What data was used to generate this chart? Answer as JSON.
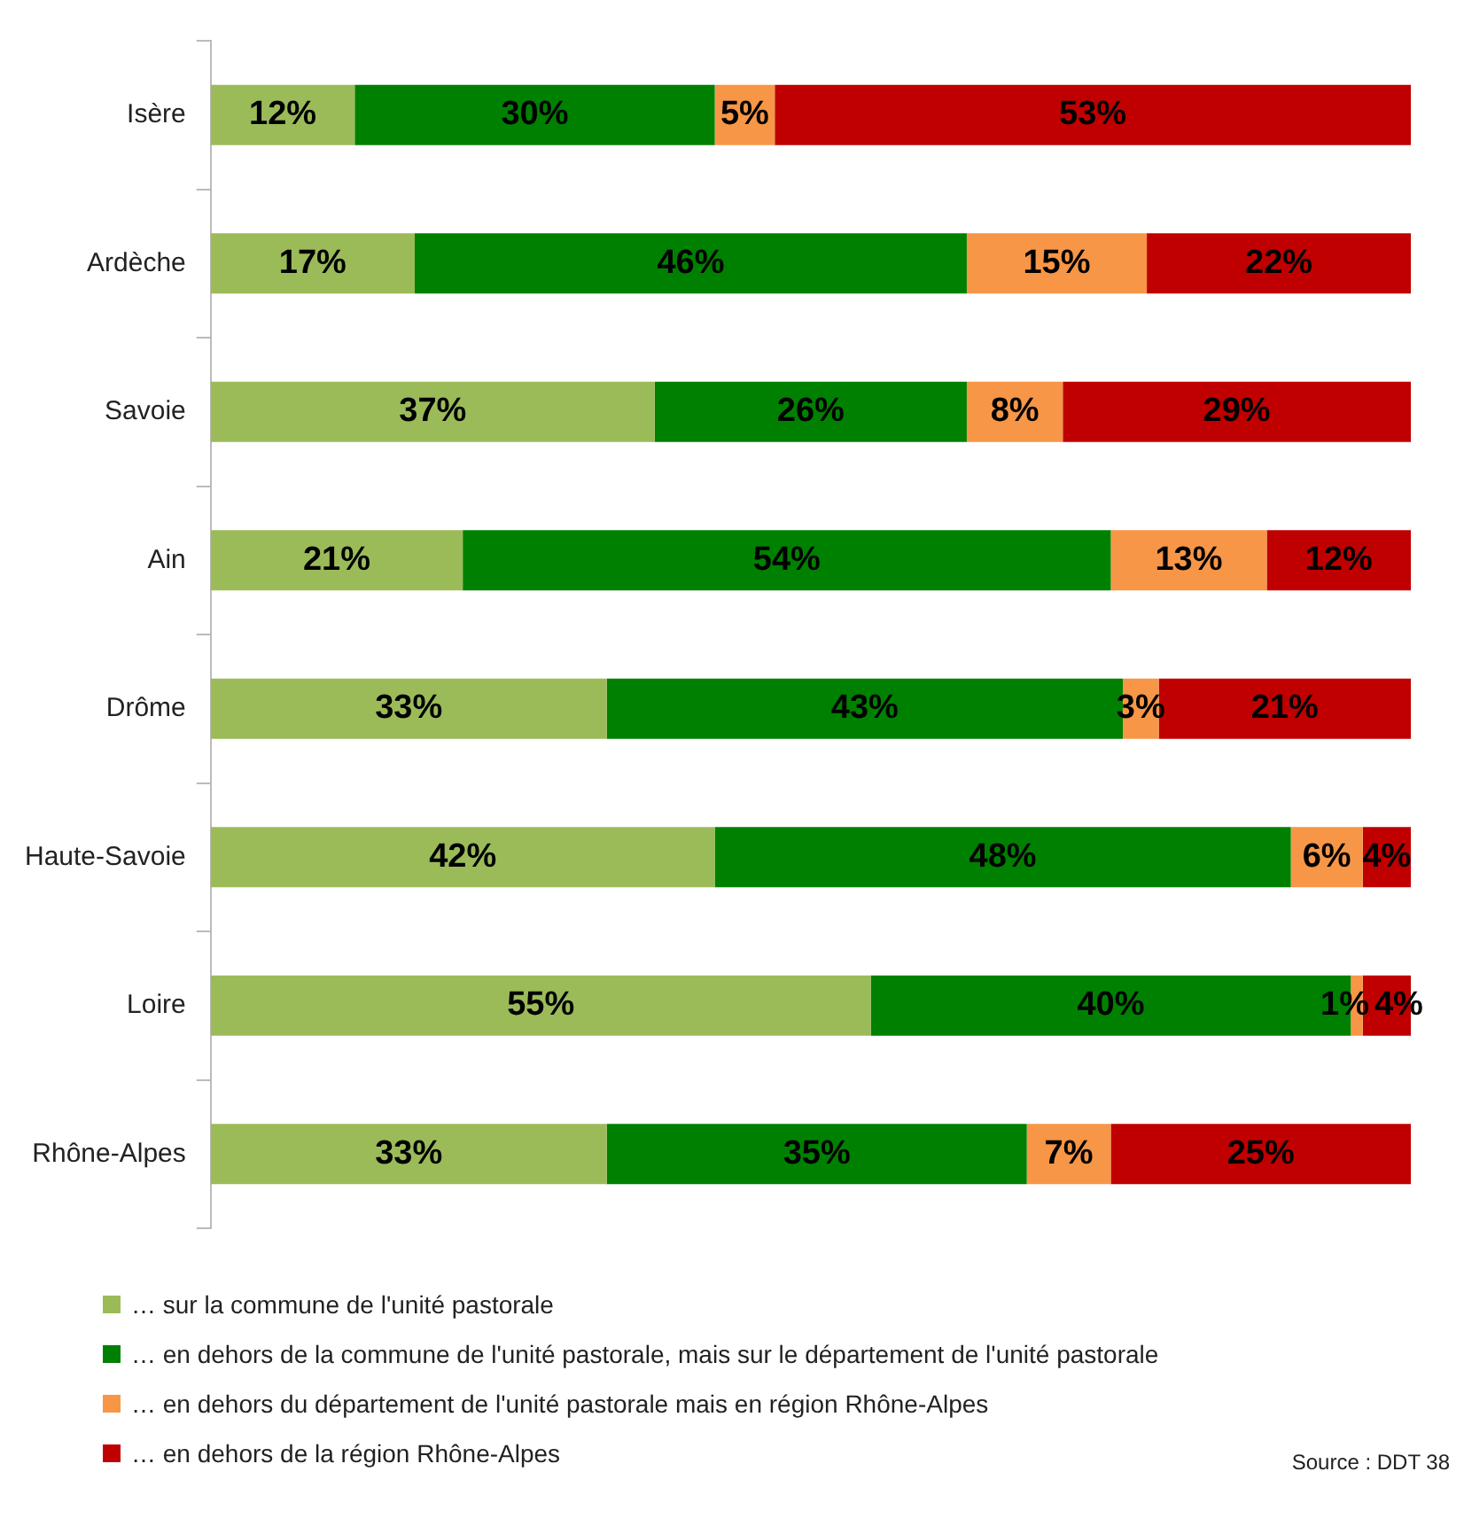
{
  "chart_data": {
    "type": "bar",
    "orientation": "horizontal",
    "stacked": true,
    "legend": "bottom",
    "categories": [
      "Isère",
      "Ardèche",
      "Savoie",
      "Ain",
      "Drôme",
      "Haute-Savoie",
      "Loire",
      "Rhône-Alpes"
    ],
    "series": [
      {
        "name": "… sur la commune de l'unité pastorale",
        "color": "#9bbb59",
        "values": [
          12,
          17,
          37,
          21,
          33,
          42,
          55,
          33
        ],
        "value_labels": [
          "12%",
          "17%",
          "37%",
          "21%",
          "33%",
          "42%",
          "55%",
          "33%"
        ]
      },
      {
        "name": "… en dehors de la commune de l'unité pastorale, mais sur le département de l'unité pastorale",
        "color": "#008000",
        "values": [
          30,
          46,
          26,
          54,
          43,
          48,
          40,
          35
        ],
        "value_labels": [
          "30%",
          "46%",
          "26%",
          "54%",
          "43%",
          "48%",
          "40%",
          "35%"
        ]
      },
      {
        "name": "… en dehors du département de l'unité pastorale mais en région Rhône-Alpes",
        "color": "#f79646",
        "values": [
          5,
          15,
          8,
          13,
          3,
          6,
          1,
          7
        ],
        "value_labels": [
          "5%",
          "15%",
          "8%",
          "13%",
          "3%",
          "6%",
          "1%",
          "7%"
        ]
      },
      {
        "name": "… en dehors de la région Rhône-Alpes",
        "color": "#c00000",
        "values": [
          53,
          22,
          29,
          12,
          21,
          4,
          4,
          25
        ],
        "value_labels": [
          "53%",
          "22%",
          "29%",
          "12%",
          "21%",
          "4%",
          "4%",
          "25%"
        ]
      }
    ],
    "annotations": [
      "Source : DDT 38"
    ]
  }
}
